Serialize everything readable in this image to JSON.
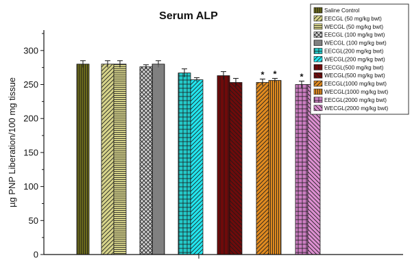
{
  "chart_data": {
    "type": "bar",
    "title": "Serum ALP",
    "ylabel": "µg PNP Liberation/100 mg tissue",
    "xlabel": "",
    "ylim": [
      0,
      330
    ],
    "yticks": [
      0,
      50,
      100,
      150,
      200,
      250,
      300
    ],
    "legend_position": "top-right",
    "series": [
      {
        "name": "Saline Control",
        "value": 280,
        "error": 5,
        "color": "#6b6a1c",
        "pattern": "vertical",
        "significant": false
      },
      {
        "name": "EECGL (50 mg/kg bwt)",
        "value": 280,
        "error": 5,
        "color": "#d6d38a",
        "pattern": "diagonal",
        "significant": false
      },
      {
        "name": "WECGL (50 mg/kg bwt)",
        "value": 280,
        "error": 5,
        "color": "#d6d38a",
        "pattern": "horizontal",
        "significant": false
      },
      {
        "name": "EECGL (100 mg/kg bwt)",
        "value": 276,
        "error": 3,
        "color": "#d0d0d0",
        "pattern": "crosshatch",
        "significant": false
      },
      {
        "name": "WECGL (100 mg/kg bwt)",
        "value": 280,
        "error": 5,
        "color": "#c4c4c4",
        "pattern": "vertical-dense",
        "significant": false
      },
      {
        "name": "EECGL(200 mg/kg bwt)",
        "value": 267,
        "error": 6,
        "color": "#24c9c9",
        "pattern": "grid",
        "significant": false
      },
      {
        "name": "WECGL(200 mg/kg bwt)",
        "value": 257,
        "error": 3,
        "color": "#22e5ee",
        "pattern": "diagonal",
        "significant": false
      },
      {
        "name": "EECGL(500 mg/kg bwt)",
        "value": 263,
        "error": 6,
        "color": "#6e0a0a",
        "pattern": "vertical-thin",
        "significant": false
      },
      {
        "name": "WECGL(500 mg/kg bwt)",
        "value": 253,
        "error": 6,
        "color": "#6e0a0a",
        "pattern": "backdiagonal",
        "significant": false
      },
      {
        "name": "EECGL(1000 mg/kg bwt)",
        "value": 253,
        "error": 5,
        "color": "#e08a20",
        "pattern": "diagonal",
        "significant": true
      },
      {
        "name": "WECGL(1000 mg/kg bwt)",
        "value": 256,
        "error": 3,
        "color": "#e08a20",
        "pattern": "vertical",
        "significant": true
      },
      {
        "name": "EECGL(2000 mg/kg bwt)",
        "value": 250,
        "error": 5,
        "color": "#cc7ec2",
        "pattern": "grid",
        "significant": true
      },
      {
        "name": "WECGL(2000 mg/kg bwt)",
        "value": 250,
        "error": 5,
        "color": "#dc8fd0",
        "pattern": "backdiagonal",
        "significant": true
      }
    ],
    "annotation_symbol": "*"
  }
}
